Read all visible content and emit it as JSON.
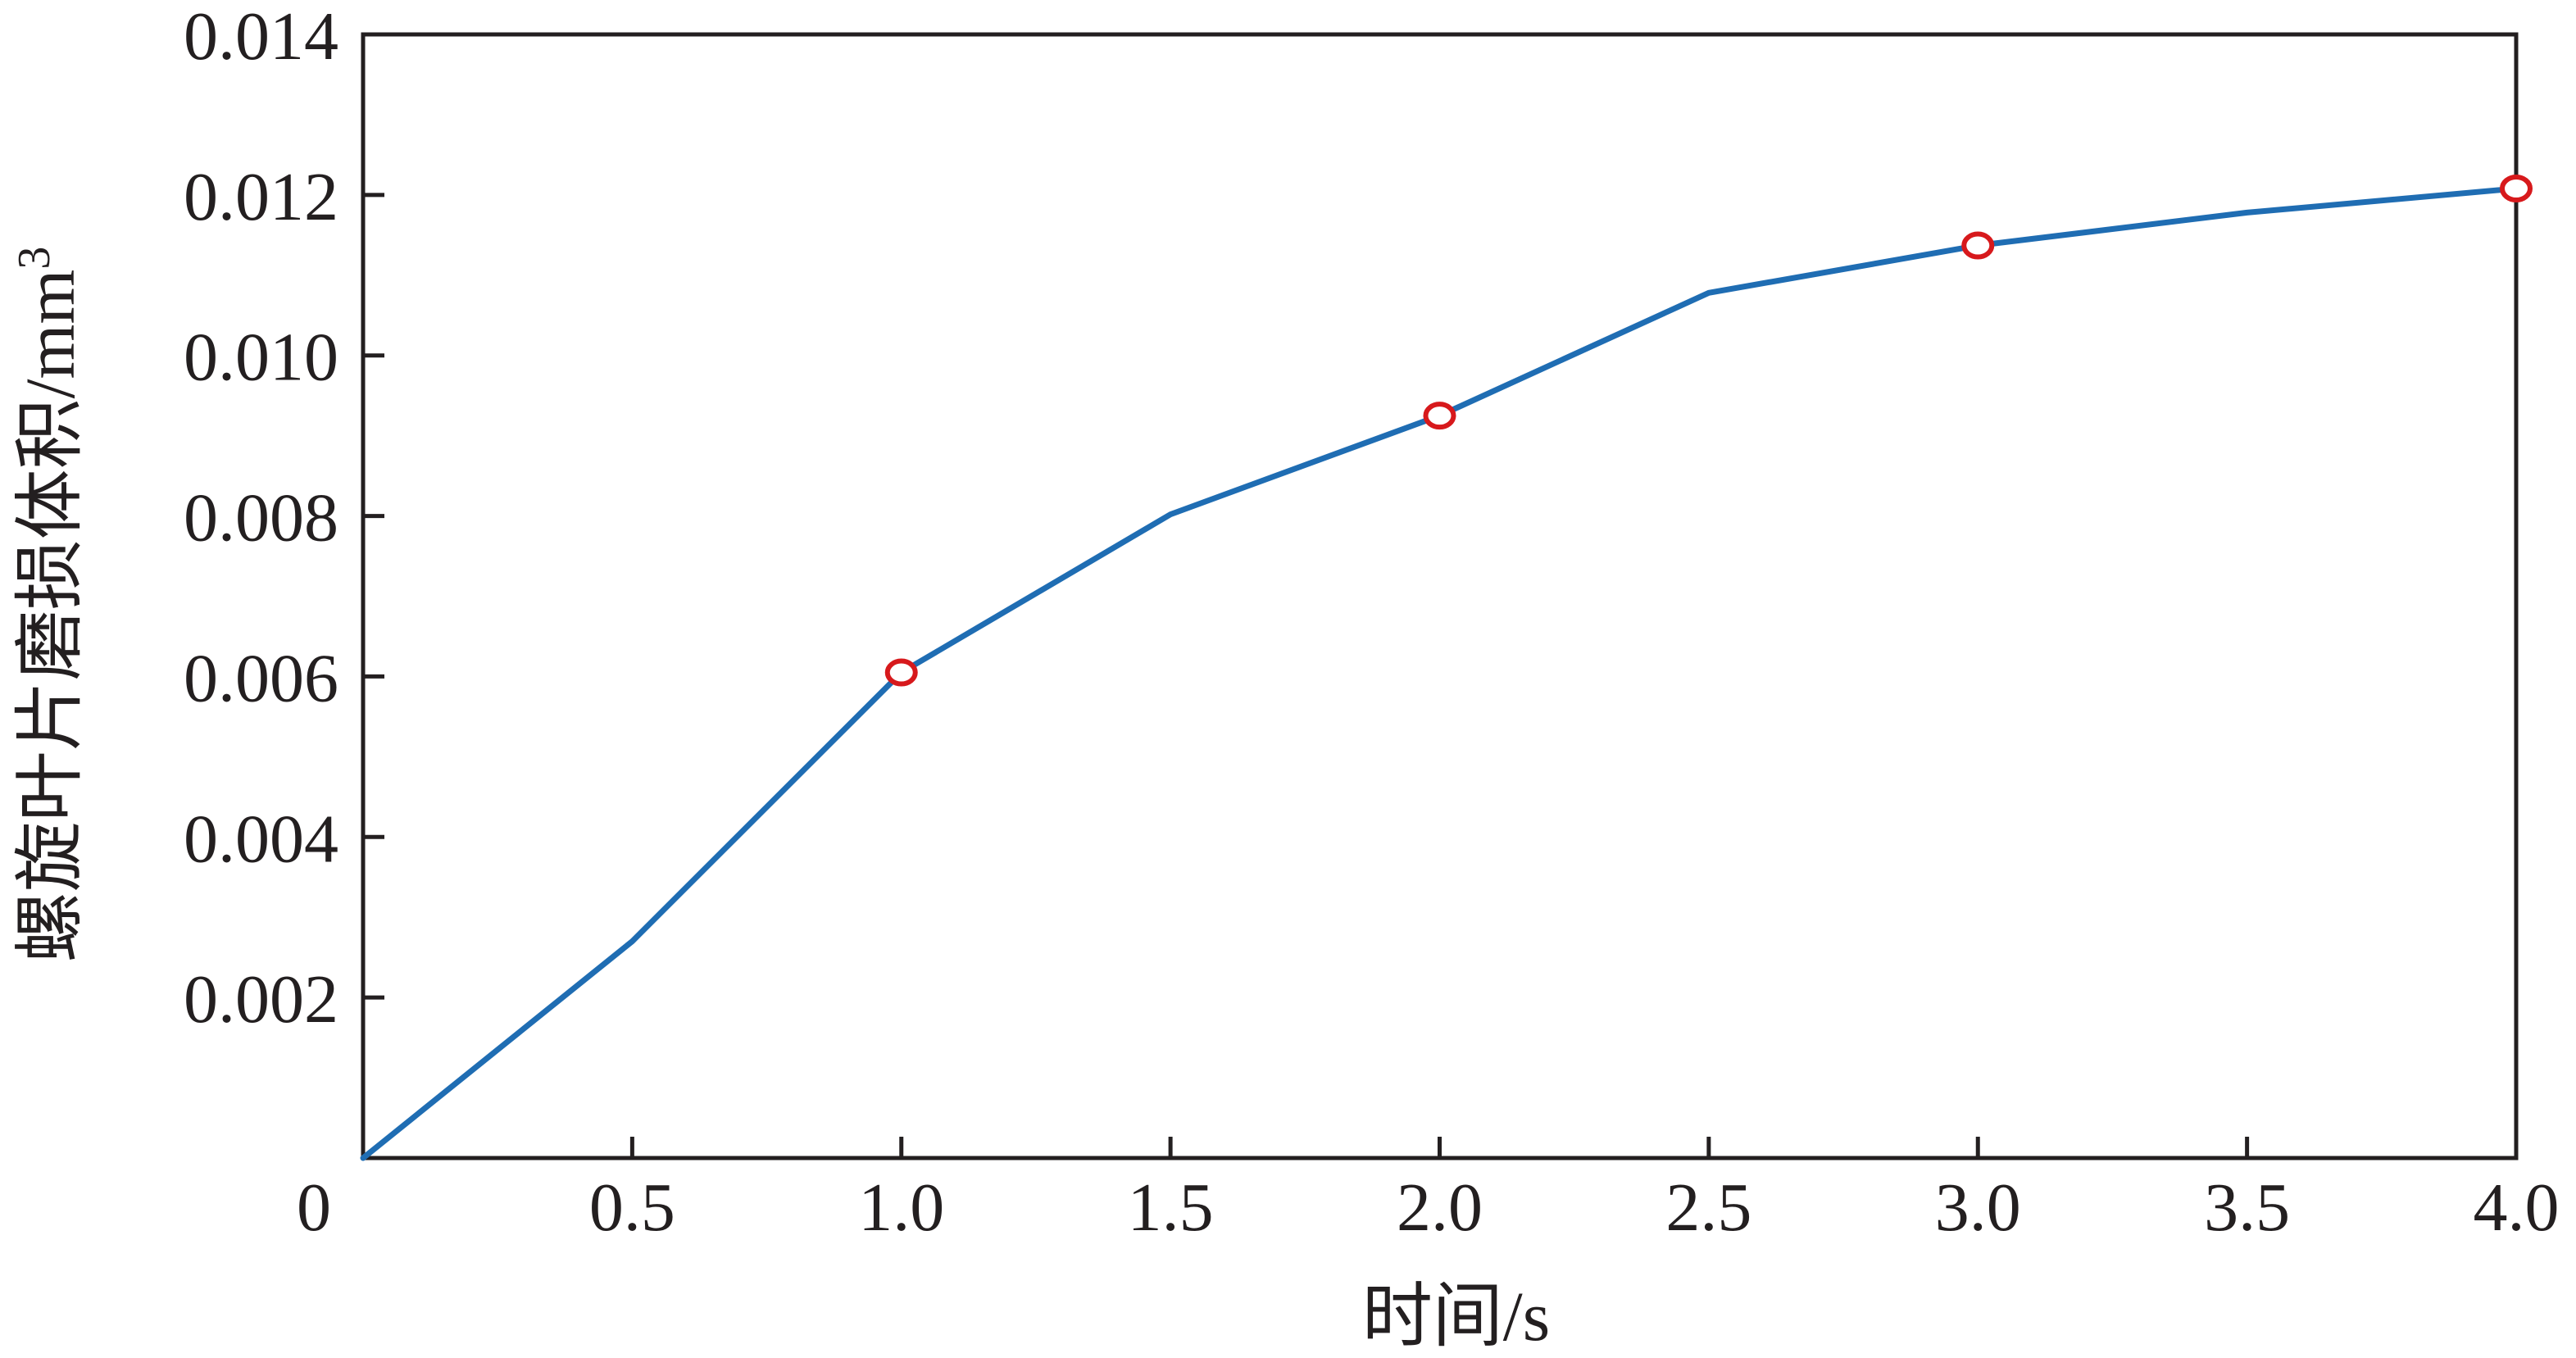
{
  "chart_data": {
    "type": "line",
    "title": "",
    "xlabel": "时间/s",
    "ylabel": "螺旋叶片磨损体积/mm",
    "ylabel_superscript": "3",
    "xlim": [
      0,
      4.0
    ],
    "ylim": [
      0,
      0.014
    ],
    "x_ticks": [
      0,
      0.5,
      1.0,
      1.5,
      2.0,
      2.5,
      3.0,
      3.5,
      4.0
    ],
    "x_tick_labels": [
      "0",
      "0.5",
      "1.0",
      "1.5",
      "2.0",
      "2.5",
      "3.0",
      "3.5",
      "4.0"
    ],
    "y_ticks": [
      0.002,
      0.004,
      0.006,
      0.008,
      0.01,
      0.012,
      0.014
    ],
    "y_tick_labels": [
      "0.002",
      "0.004",
      "0.006",
      "0.008",
      "0.010",
      "0.012",
      "0.014"
    ],
    "grid": false,
    "legend": "none",
    "series": [
      {
        "x": [
          0,
          0.5,
          1.0,
          1.5,
          2.0,
          2.5,
          3.0,
          3.5,
          4.0
        ],
        "y": [
          0,
          0.0027,
          0.00605,
          0.00802,
          0.00925,
          0.01078,
          0.01137,
          0.01178,
          0.01208
        ],
        "color": "#1f6db3",
        "markers_at_x": [
          1.0,
          2.0,
          3.0,
          4.0
        ],
        "marker_color": "#d7191c"
      }
    ]
  }
}
